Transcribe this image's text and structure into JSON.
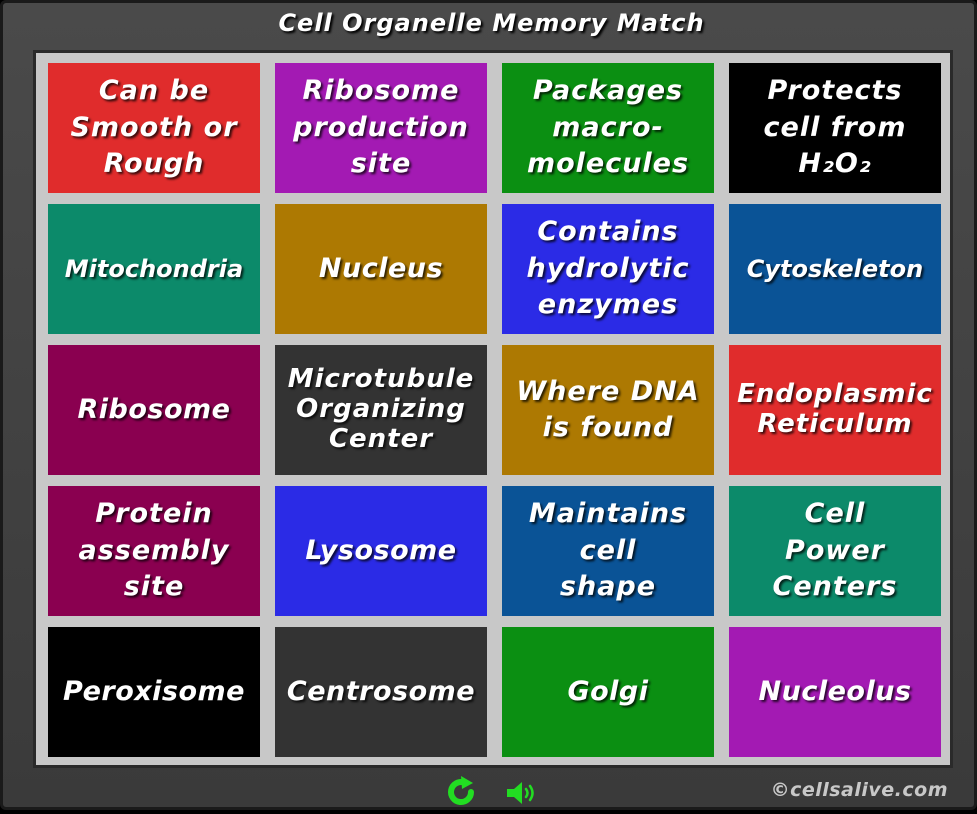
{
  "app": {
    "title": "Cell Organelle Memory Match"
  },
  "cards": [
    {
      "label": "Can be\nSmooth or\nRough",
      "color": "#e02c2c"
    },
    {
      "label": "Ribosome\nproduction\nsite",
      "color": "#a31ab3"
    },
    {
      "label": "Packages\nmacro-\nmolecules",
      "color": "#0b8f12"
    },
    {
      "label": "Protects\ncell from\nH₂O₂",
      "color": "#000000"
    },
    {
      "label": "Mitochondria",
      "color": "#0c8a6a"
    },
    {
      "label": "Nucleus",
      "color": "#ad7902"
    },
    {
      "label": "Contains\nhydrolytic\nenzymes",
      "color": "#2b2be6"
    },
    {
      "label": "Cytoskeleton",
      "color": "#0a5396"
    },
    {
      "label": "Ribosome",
      "color": "#8a0050"
    },
    {
      "label": "Microtubule\nOrganizing\nCenter",
      "color": "#333333"
    },
    {
      "label": "Where DNA\nis found",
      "color": "#ad7902"
    },
    {
      "label": "Endoplasmic\nReticulum",
      "color": "#e02c2c"
    },
    {
      "label": "Protein\nassembly\nsite",
      "color": "#8a0050"
    },
    {
      "label": "Lysosome",
      "color": "#2b2be6"
    },
    {
      "label": "Maintains\ncell\nshape",
      "color": "#0a5396"
    },
    {
      "label": "Cell\nPower\nCenters",
      "color": "#0c8a6a"
    },
    {
      "label": "Peroxisome",
      "color": "#000000"
    },
    {
      "label": "Centrosome",
      "color": "#333333"
    },
    {
      "label": "Golgi",
      "color": "#0b8f12"
    },
    {
      "label": "Nucleolus",
      "color": "#a31ab3"
    }
  ],
  "footer": {
    "restart_icon": "restart-icon",
    "sound_icon": "speaker-icon",
    "icon_color": "#22dd22",
    "copyright": "©cellsalive.com"
  }
}
